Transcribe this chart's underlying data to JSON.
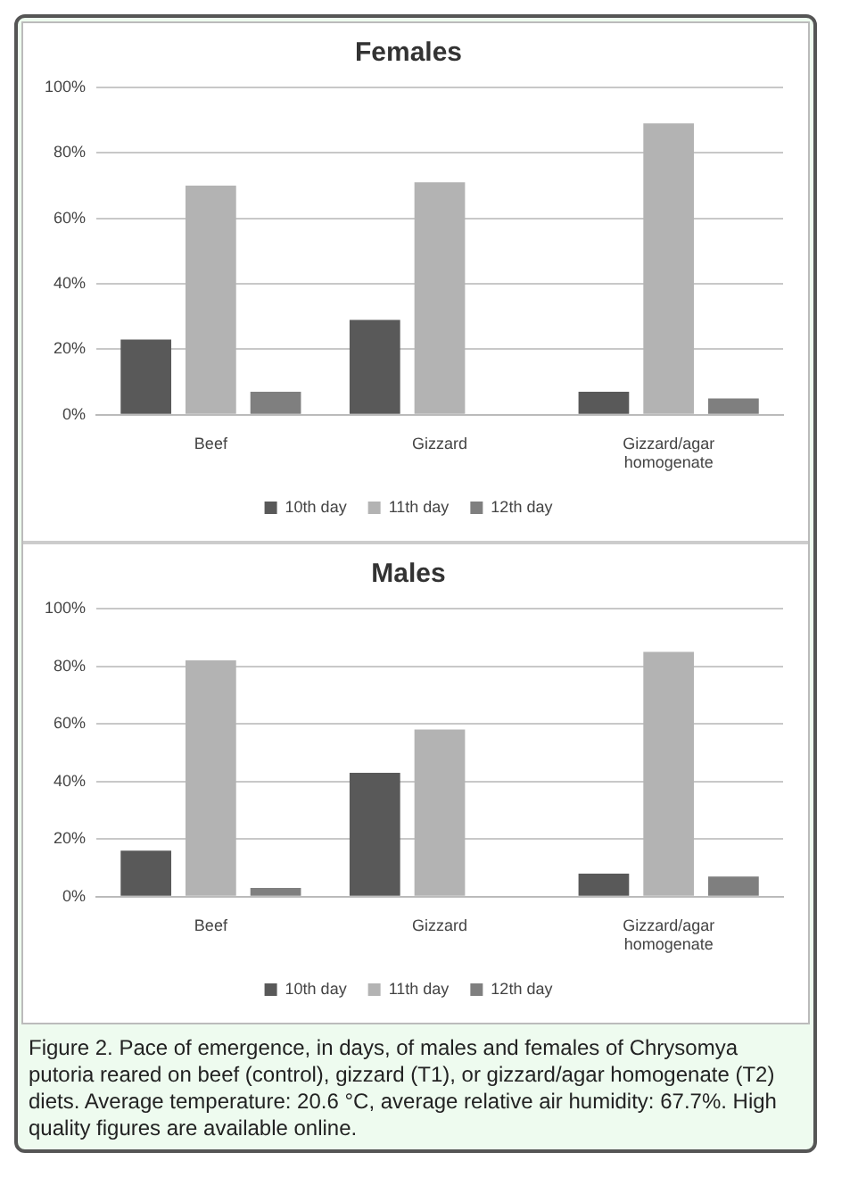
{
  "chart_data": [
    {
      "type": "bar",
      "title": "Females",
      "categories": [
        "Beef",
        "Gizzard",
        "Gizzard/agar homogenate"
      ],
      "series": [
        {
          "name": "10th day",
          "color": "#595959",
          "values": [
            23,
            29,
            7
          ]
        },
        {
          "name": "11th day",
          "color": "#b3b3b3",
          "values": [
            70,
            71,
            89
          ]
        },
        {
          "name": "12th day",
          "color": "#7f7f7f",
          "values": [
            7,
            0,
            5
          ]
        }
      ],
      "ylim": [
        0,
        100
      ],
      "yticks": [
        {
          "value": 0,
          "label": "0%"
        },
        {
          "value": 20,
          "label": "20%"
        },
        {
          "value": 40,
          "label": "40%"
        },
        {
          "value": 60,
          "label": "60%"
        },
        {
          "value": 80,
          "label": "80%"
        },
        {
          "value": 100,
          "label": "100%"
        }
      ],
      "grid": "y",
      "legend": "bottom"
    },
    {
      "type": "bar",
      "title": "Males",
      "categories": [
        "Beef",
        "Gizzard",
        "Gizzard/agar homogenate"
      ],
      "series": [
        {
          "name": "10th day",
          "color": "#595959",
          "values": [
            16,
            43,
            8
          ]
        },
        {
          "name": "11th day",
          "color": "#b3b3b3",
          "values": [
            82,
            58,
            85
          ]
        },
        {
          "name": "12th day",
          "color": "#7f7f7f",
          "values": [
            3,
            0,
            7
          ]
        }
      ],
      "ylim": [
        0,
        100
      ],
      "yticks": [
        {
          "value": 0,
          "label": "0%"
        },
        {
          "value": 20,
          "label": "20%"
        },
        {
          "value": 40,
          "label": "40%"
        },
        {
          "value": 60,
          "label": "60%"
        },
        {
          "value": 80,
          "label": "80%"
        },
        {
          "value": 100,
          "label": "100%"
        }
      ],
      "grid": "y",
      "legend": "bottom",
      "annotations": [
        "Figure 2. Pace of emergence, in days, of males and females of Chrysomya putoria reared on beef (control), gizzard (T1), or gizzard/agar homogenate (T2) diets. Average temperature: 20.6 °C, average relative air humidity: 67.7%. High quality figures are available online."
      ]
    }
  ]
}
